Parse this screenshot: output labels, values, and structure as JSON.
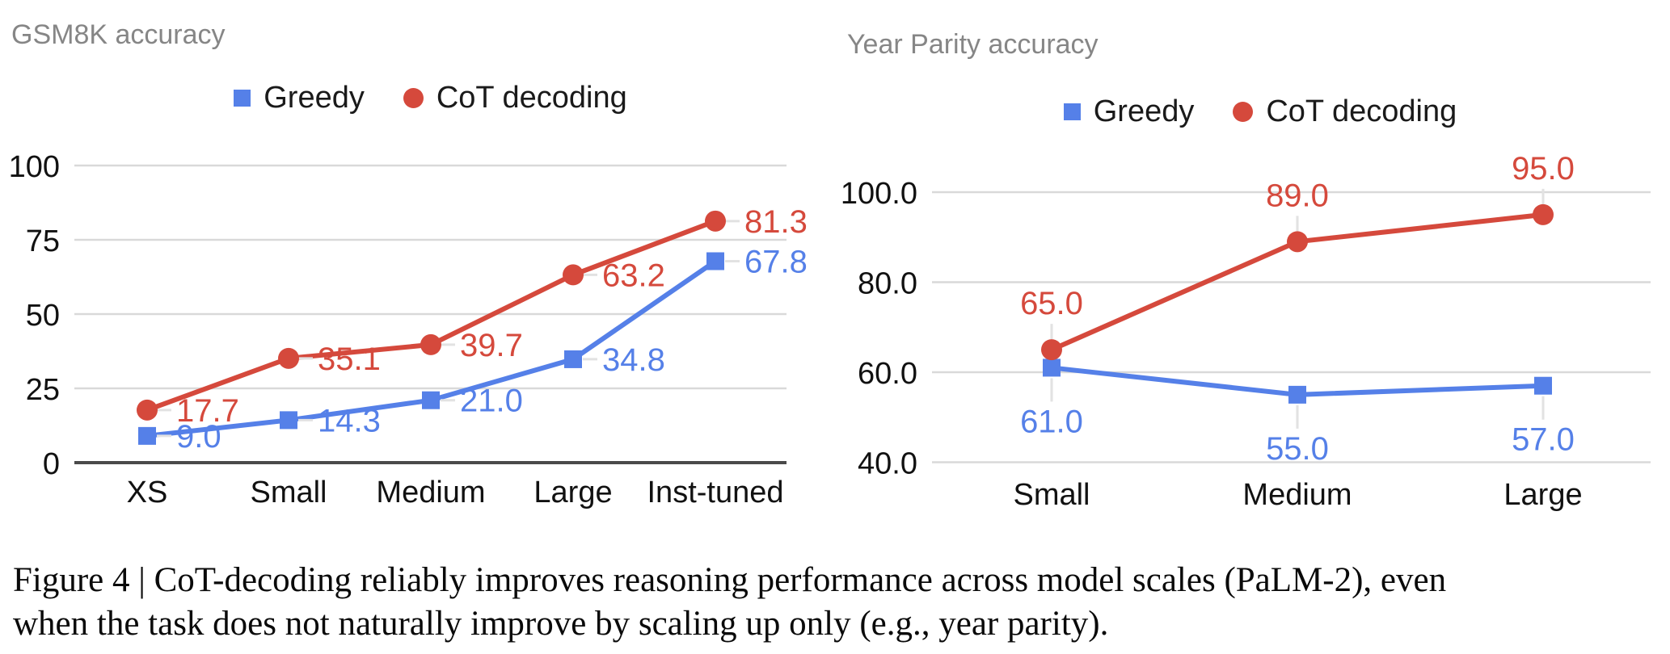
{
  "caption": {
    "line1": "Figure 4 | CoT-decoding reliably improves reasoning performance across model scales (PaLM-2), even",
    "line2": "when the task does not naturally improve by scaling up only (e.g., year parity)."
  },
  "colors": {
    "grid": "#d9d9d9",
    "zero_axis": "#4a4a4a",
    "leader": "#e2e2e2",
    "tick_text": "#111111",
    "title_gray": "#868686"
  },
  "chart_data": [
    {
      "type": "line",
      "title": "GSM8K accuracy",
      "categories": [
        "XS",
        "Small",
        "Medium",
        "Large",
        "Inst-tuned"
      ],
      "ylim": [
        0,
        100
      ],
      "grid": true,
      "legend_position": "top",
      "yticks": [
        {
          "value": 100,
          "label": "100"
        },
        {
          "value": 75,
          "label": "75"
        },
        {
          "value": 50,
          "label": "50"
        },
        {
          "value": 25,
          "label": "25"
        },
        {
          "value": 0,
          "label": "0"
        }
      ],
      "series": [
        {
          "name": "Greedy",
          "marker": "square",
          "color": "#5580e8",
          "values": [
            9.0,
            14.3,
            21.0,
            34.8,
            67.8
          ],
          "point_labels": [
            "9.0",
            "14.3",
            "21.0",
            "34.8",
            "67.8"
          ],
          "label_position": "right"
        },
        {
          "name": "CoT decoding",
          "marker": "circle",
          "color": "#d5493c",
          "values": [
            17.7,
            35.1,
            39.7,
            63.2,
            81.3
          ],
          "point_labels": [
            "17.7",
            "35.1",
            "39.7",
            "63.2",
            "81.3"
          ],
          "label_position": "right"
        }
      ]
    },
    {
      "type": "line",
      "title": "Year Parity accuracy",
      "categories": [
        "Small",
        "Medium",
        "Large"
      ],
      "ylim": [
        40,
        100
      ],
      "grid": true,
      "legend_position": "top",
      "yticks": [
        {
          "value": 100,
          "label": "100.0"
        },
        {
          "value": 80,
          "label": "80.0"
        },
        {
          "value": 60,
          "label": "60.0"
        },
        {
          "value": 40,
          "label": "40.0"
        }
      ],
      "series": [
        {
          "name": "Greedy",
          "marker": "square",
          "color": "#5580e8",
          "values": [
            61.0,
            55.0,
            57.0
          ],
          "point_labels": [
            "61.0",
            "55.0",
            "57.0"
          ],
          "label_position": "below"
        },
        {
          "name": "CoT decoding",
          "marker": "circle",
          "color": "#d5493c",
          "values": [
            65.0,
            89.0,
            95.0
          ],
          "point_labels": [
            "65.0",
            "89.0",
            "95.0"
          ],
          "label_position": "above"
        }
      ]
    }
  ]
}
